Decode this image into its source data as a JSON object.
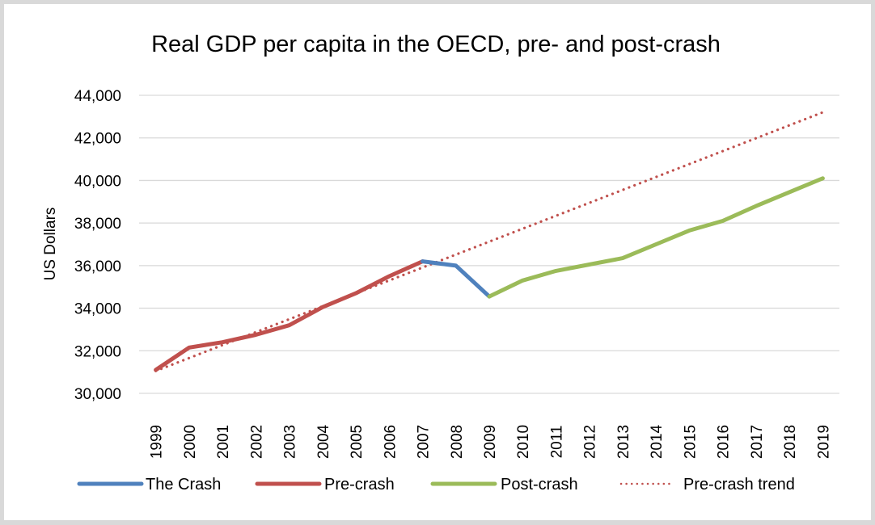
{
  "chart_data": {
    "type": "line",
    "title": "Real GDP per capita in the OECD, pre- and post-crash",
    "xlabel": "",
    "ylabel": "US Dollars",
    "ylim": [
      30000,
      44000
    ],
    "y_ticks": [
      30000,
      32000,
      34000,
      36000,
      38000,
      40000,
      42000,
      44000
    ],
    "y_tick_labels": [
      "30,000",
      "32,000",
      "34,000",
      "36,000",
      "38,000",
      "40,000",
      "42,000",
      "44,000"
    ],
    "grid": true,
    "legend_position": "bottom",
    "x": [
      "1999",
      "2000",
      "2001",
      "2002",
      "2003",
      "2004",
      "2005",
      "2006",
      "2007",
      "2008",
      "2009",
      "2010",
      "2011",
      "2012",
      "2013",
      "2014",
      "2015",
      "2016",
      "2017",
      "2018",
      "2019"
    ],
    "series": [
      {
        "name": "The Crash",
        "color": "#4f81bd",
        "style": "solid",
        "x": [
          "2007",
          "2008",
          "2009"
        ],
        "values": [
          36200,
          36000,
          34550
        ]
      },
      {
        "name": "Pre-crash",
        "color": "#c0504d",
        "style": "solid",
        "x": [
          "1999",
          "2000",
          "2001",
          "2002",
          "2003",
          "2004",
          "2005",
          "2006",
          "2007"
        ],
        "values": [
          31100,
          32150,
          32400,
          32750,
          33200,
          34050,
          34700,
          35500,
          36200
        ]
      },
      {
        "name": "Post-crash",
        "color": "#9bbb59",
        "style": "solid",
        "x": [
          "2009",
          "2010",
          "2011",
          "2012",
          "2013",
          "2014",
          "2015",
          "2016",
          "2017",
          "2018",
          "2019"
        ],
        "values": [
          34550,
          35300,
          35750,
          36050,
          36350,
          37000,
          37650,
          38100,
          38800,
          39450,
          40100
        ]
      },
      {
        "name": "Pre-crash trend",
        "color": "#c0504d",
        "style": "dotted",
        "x": [
          "1999",
          "2019"
        ],
        "values": [
          31050,
          43200
        ]
      }
    ]
  }
}
